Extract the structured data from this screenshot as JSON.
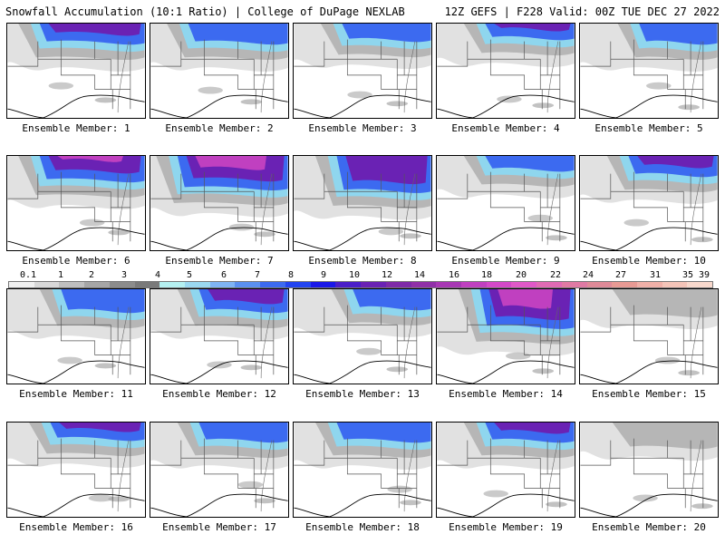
{
  "header": {
    "left_title": "Snowfall Accumulation (10:1 Ratio) | College of DuPage NEXLAB",
    "right_title": "12Z GEFS | F228 Valid: 00Z TUE DEC 27 2022"
  },
  "scale": {
    "labels": [
      "0.1",
      "1",
      "2",
      "3",
      "4",
      "5",
      "6",
      "7",
      "8",
      "9",
      "10",
      "12",
      "14",
      "16",
      "18",
      "20",
      "22",
      "24",
      "27",
      "31",
      "35",
      "39"
    ],
    "colors": [
      "#f0f0f0",
      "#d8d8d8",
      "#bfbfbf",
      "#a6a6a6",
      "#8c8c8c",
      "#7a7a7a",
      "#b4f0f0",
      "#9ad8f0",
      "#7fb4f4",
      "#5a90f0",
      "#3c6af0",
      "#2244f0",
      "#1a18e8",
      "#4a1ec8",
      "#6a22b4",
      "#7e2aa8",
      "#9030a8",
      "#a838b4",
      "#c040c0",
      "#d448c8",
      "#e058c8",
      "#e06ab4",
      "#e07aa4",
      "#e08a98",
      "#e89a94",
      "#f0b0a8",
      "#f4c4b8",
      "#f8d8cc"
    ]
  },
  "members": [
    {
      "label": "Ensemble Member: 1",
      "intensity": 2,
      "coverage": 0.3,
      "east": 0.2
    },
    {
      "label": "Ensemble Member: 2",
      "intensity": 1,
      "coverage": 0.3,
      "east": 0.3
    },
    {
      "label": "Ensemble Member: 3",
      "intensity": 1,
      "coverage": 0.25,
      "east": 0.5
    },
    {
      "label": "Ensemble Member: 4",
      "intensity": 2,
      "coverage": 0.22,
      "east": 0.5
    },
    {
      "label": "Ensemble Member: 5",
      "intensity": 1,
      "coverage": 0.3,
      "east": 0.7
    },
    {
      "label": "Ensemble Member: 6",
      "intensity": 3,
      "coverage": 0.4,
      "east": 0.2
    },
    {
      "label": "Ensemble Member: 7",
      "intensity": 3,
      "coverage": 0.55,
      "east": 0.1
    },
    {
      "label": "Ensemble Member: 8",
      "intensity": 2,
      "coverage": 0.6,
      "east": 0.4
    },
    {
      "label": "Ensemble Member: 9",
      "intensity": 1,
      "coverage": 0.2,
      "east": 0.5
    },
    {
      "label": "Ensemble Member: 10",
      "intensity": 2,
      "coverage": 0.3,
      "east": 0.5
    },
    {
      "label": "Ensemble Member: 11",
      "intensity": 1,
      "coverage": 0.35,
      "east": 0.6
    },
    {
      "label": "Ensemble Member: 12",
      "intensity": 2,
      "coverage": 0.35,
      "east": 0.5
    },
    {
      "label": "Ensemble Member: 13",
      "intensity": 1,
      "coverage": 0.3,
      "east": 0.7
    },
    {
      "label": "Ensemble Member: 14",
      "intensity": 3,
      "coverage": 0.65,
      "east": 0.4
    },
    {
      "label": "Ensemble Member: 15",
      "intensity": 0,
      "coverage": 0.15,
      "east": 0.6
    },
    {
      "label": "Ensemble Member: 16",
      "intensity": 2,
      "coverage": 0.25,
      "east": 0.4
    },
    {
      "label": "Ensemble Member: 17",
      "intensity": 1,
      "coverage": 0.28,
      "east": 0.5
    },
    {
      "label": "Ensemble Member: 18",
      "intensity": 1,
      "coverage": 0.28,
      "east": 0.4
    },
    {
      "label": "Ensemble Member: 19",
      "intensity": 2,
      "coverage": 0.28,
      "east": 0.5
    },
    {
      "label": "Ensemble Member: 20",
      "intensity": 0,
      "coverage": 0.12,
      "east": 0.6
    }
  ]
}
